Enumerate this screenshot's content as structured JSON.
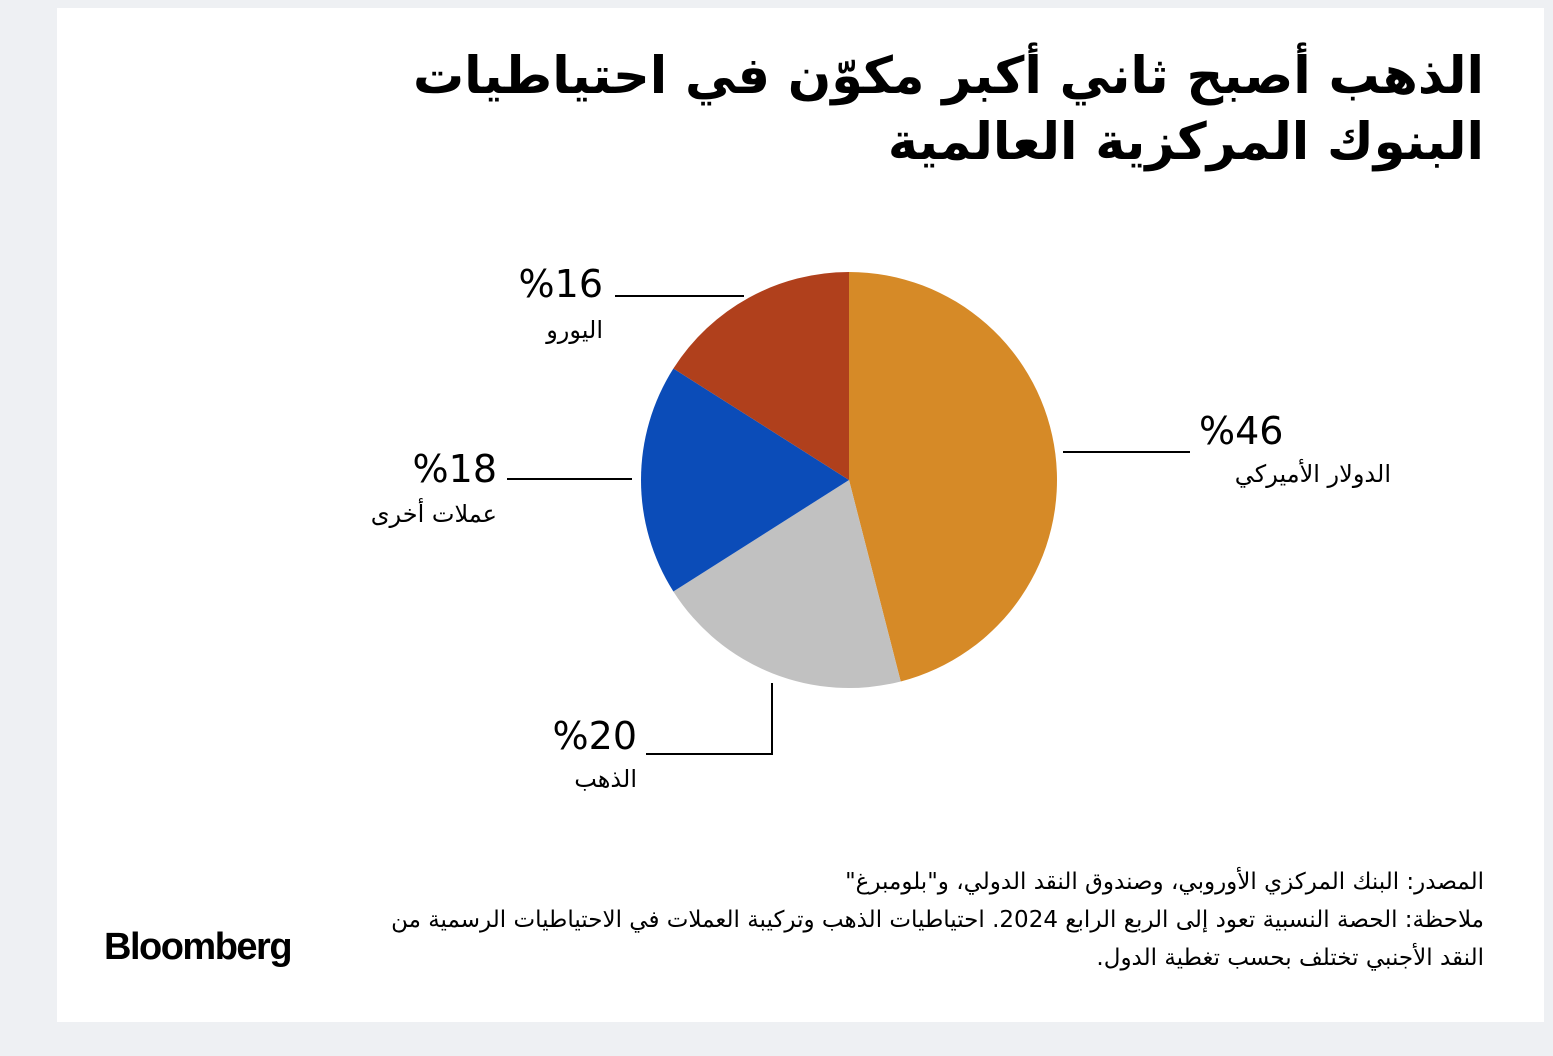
{
  "title": "الذهب أصبح ثاني أكبر مكوّن في احتياطيات البنوك المركزية العالمية",
  "chart_data": {
    "type": "pie",
    "slices": [
      {
        "label": "الدولار الأميركي",
        "value": 46,
        "value_label": "%46",
        "color": "#d68a27"
      },
      {
        "label": "الذهب",
        "value": 20,
        "value_label": "%20",
        "color": "#c1c1c1"
      },
      {
        "label": "عملات أخرى",
        "value": 18,
        "value_label": "%18",
        "color": "#0b4cb8"
      },
      {
        "label": "اليورو",
        "value": 16,
        "value_label": "%16",
        "color": "#b0401c"
      }
    ]
  },
  "source": "المصدر: البنك المركزي الأوروبي، وصندوق النقد الدولي، و\"بلومبرغ\"",
  "note": "ملاحظة: الحصة النسبية تعود إلى الربع الرابع 2024. احتياطيات الذهب وتركيبة العملات في الاحتياطيات الرسمية من النقد الأجنبي تختلف بحسب تغطية الدول.",
  "brand": "Bloomberg"
}
